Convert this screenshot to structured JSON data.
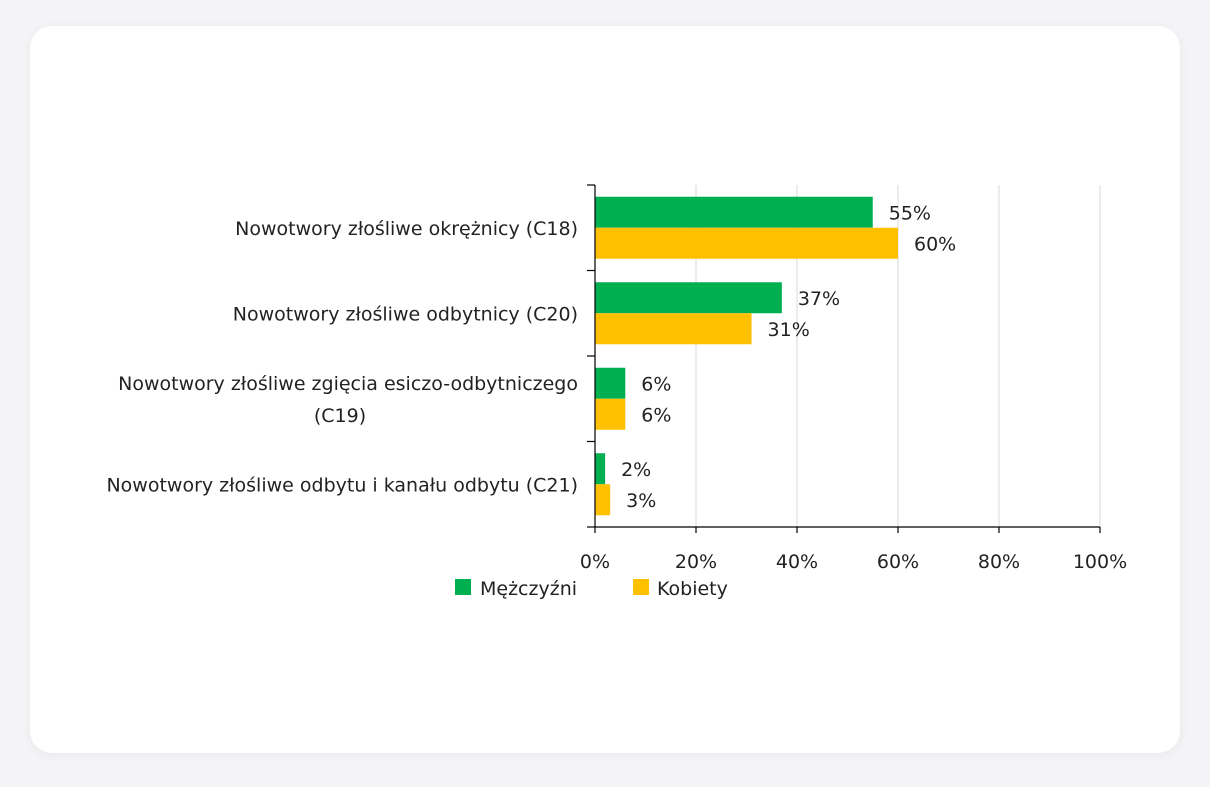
{
  "chart_data": {
    "type": "bar",
    "orientation": "horizontal",
    "categories": [
      [
        "Nowotwory złośliwe okrężnicy (C18)"
      ],
      [
        "Nowotwory złośliwe odbytnicy (C20)"
      ],
      [
        "Nowotwory złośliwe zgięcia esiczo-odbytniczego",
        "(C19)"
      ],
      [
        "Nowotwory złośliwe odbytu i kanału odbytu (C21)"
      ]
    ],
    "series": [
      {
        "name": "Mężczyźni",
        "color": "#00b050",
        "values": [
          55,
          37,
          6,
          2
        ],
        "labels": [
          "55%",
          "37%",
          "6%",
          "2%"
        ]
      },
      {
        "name": "Kobiety",
        "color": "#ffc000",
        "values": [
          60,
          31,
          6,
          3
        ],
        "labels": [
          "60%",
          "31%",
          "6%",
          "3%"
        ]
      }
    ],
    "xlim": [
      0,
      100
    ],
    "xticks": [
      0,
      20,
      40,
      60,
      80,
      100
    ],
    "xtick_labels": [
      "0%",
      "20%",
      "40%",
      "60%",
      "80%",
      "100%"
    ],
    "grid": true,
    "legend_position": "bottom"
  }
}
